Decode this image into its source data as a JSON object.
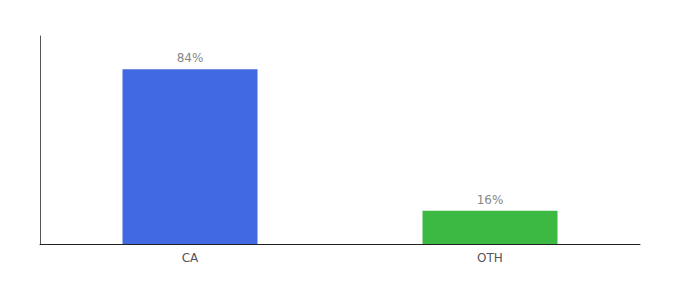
{
  "chart_data": {
    "type": "bar",
    "categories": [
      "CA",
      "OTH"
    ],
    "values": [
      84,
      16
    ],
    "colors": [
      "#4169e1",
      "#3cb943"
    ],
    "ylim": [
      0,
      100
    ],
    "data_labels": true,
    "value_labels": [
      "84%",
      "16%"
    ],
    "tick_labels": "x",
    "grid": false
  }
}
